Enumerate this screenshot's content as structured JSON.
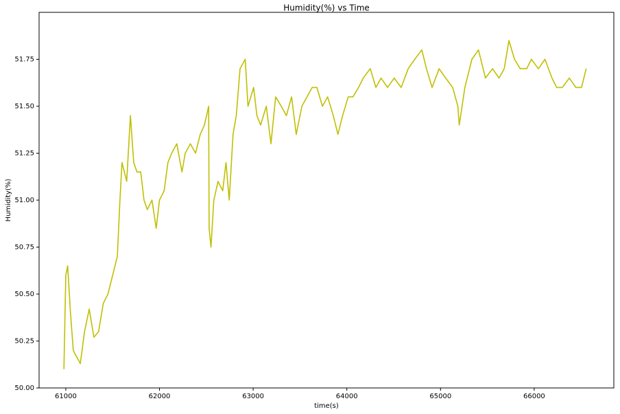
{
  "chart_data": {
    "type": "line",
    "title": "Humidity(%) vs Time",
    "x_label": "time(s)",
    "y_label": "Humidity(%)",
    "color": "#bfbf00",
    "grid": false,
    "x": [
      60980,
      61000,
      61020,
      61050,
      61080,
      61100,
      61155,
      61200,
      61250,
      61300,
      61350,
      61400,
      61450,
      61500,
      61550,
      61578,
      61600,
      61650,
      61690,
      61725,
      61760,
      61800,
      61835,
      61870,
      61920,
      61965,
      62000,
      62050,
      62090,
      62130,
      62185,
      62240,
      62275,
      62330,
      62385,
      62435,
      62480,
      62525,
      62530,
      62550,
      62580,
      62625,
      62675,
      62710,
      62745,
      62785,
      62820,
      62860,
      62915,
      62945,
      63005,
      63040,
      63080,
      63140,
      63190,
      63240,
      63300,
      63355,
      63410,
      63460,
      63520,
      63575,
      63630,
      63680,
      63740,
      63795,
      63855,
      63905,
      63955,
      64015,
      64065,
      64125,
      64175,
      64250,
      64310,
      64365,
      64435,
      64505,
      64580,
      64655,
      64725,
      64800,
      64850,
      64910,
      64985,
      65055,
      65130,
      65185,
      65200,
      65260,
      65335,
      65405,
      65480,
      65555,
      65625,
      65680,
      65730,
      65790,
      65850,
      65920,
      65970,
      66045,
      66115,
      66190,
      66240,
      66300,
      66375,
      66445,
      66505,
      66555
    ],
    "values": [
      50.1,
      50.6,
      50.65,
      50.4,
      50.2,
      50.18,
      50.13,
      50.3,
      50.42,
      50.27,
      50.3,
      50.45,
      50.5,
      50.6,
      50.7,
      51.0,
      51.2,
      51.1,
      51.45,
      51.2,
      51.15,
      51.15,
      51.0,
      50.95,
      51.0,
      50.85,
      51.0,
      51.05,
      51.2,
      51.25,
      51.3,
      51.15,
      51.25,
      51.3,
      51.25,
      51.35,
      51.4,
      51.5,
      50.85,
      50.75,
      51.0,
      51.1,
      51.05,
      51.2,
      51.0,
      51.35,
      51.45,
      51.7,
      51.75,
      51.5,
      51.6,
      51.45,
      51.4,
      51.5,
      51.3,
      51.55,
      51.5,
      51.45,
      51.55,
      51.35,
      51.5,
      51.55,
      51.6,
      51.6,
      51.5,
      51.55,
      51.45,
      51.35,
      51.45,
      51.55,
      51.55,
      51.6,
      51.65,
      51.7,
      51.6,
      51.65,
      51.6,
      51.65,
      51.6,
      51.7,
      51.75,
      51.8,
      51.7,
      51.6,
      51.7,
      51.65,
      51.6,
      51.5,
      51.4,
      51.6,
      51.75,
      51.8,
      51.65,
      51.7,
      51.65,
      51.7,
      51.85,
      51.75,
      51.7,
      51.7,
      51.75,
      51.7,
      51.75,
      51.65,
      51.6,
      51.6,
      51.65,
      51.6,
      51.6,
      51.7
    ],
    "xlim": [
      60715,
      66850
    ],
    "xticks": [
      61000,
      62000,
      63000,
      64000,
      65000,
      66000
    ],
    "ylim": [
      50.0,
      52.0
    ],
    "yticks": [
      {
        "value": 50.0,
        "label": "50.00"
      },
      {
        "value": 50.25,
        "label": "50.25"
      },
      {
        "value": 50.5,
        "label": "50.50"
      },
      {
        "value": 50.75,
        "label": "50.75"
      },
      {
        "value": 51.0,
        "label": "51.00"
      },
      {
        "value": 51.25,
        "label": "51.25"
      },
      {
        "value": 51.5,
        "label": "51.50"
      },
      {
        "value": 51.75,
        "label": "51.75"
      }
    ]
  }
}
